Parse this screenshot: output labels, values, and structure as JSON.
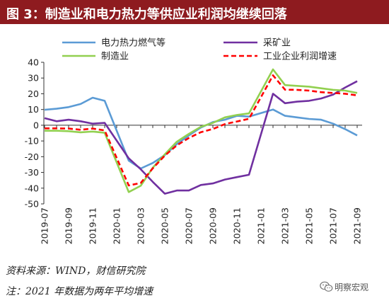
{
  "chart_data": {
    "type": "line",
    "title": "图 3：制造业和电力热力等供应业利润均继续回落",
    "xlabel": "",
    "ylabel": "",
    "ylim": [
      -50,
      40
    ],
    "yticks": [
      40,
      30,
      20,
      10,
      0,
      -10,
      -20,
      -30,
      -40,
      -50
    ],
    "grid": false,
    "legend": "top",
    "categories": [
      "2019-07",
      "2019-08",
      "2019-09",
      "2019-10",
      "2019-11",
      "2019-12",
      "2020-01",
      "2020-02",
      "2020-03",
      "2020-04",
      "2020-05",
      "2020-06",
      "2020-07",
      "2020-08",
      "2020-09",
      "2020-10",
      "2020-11",
      "2020-12",
      "2021-01",
      "2021-02",
      "2021-03",
      "2021-04",
      "2021-05",
      "2021-06",
      "2021-07",
      "2021-08",
      "2021-09"
    ],
    "series": [
      {
        "name": "电力热力燃气等",
        "color": "#5B9BD5",
        "line_style": "solid",
        "values": [
          9.8,
          10.5,
          11.5,
          13.5,
          17.5,
          15.5,
          null,
          -22.5,
          -27.5,
          -24,
          -19,
          -12,
          -6.5,
          -1.5,
          2,
          3.5,
          6,
          5.5,
          null,
          10,
          6,
          5,
          4,
          3.5,
          1,
          -2.5,
          -6.5
        ]
      },
      {
        "name": "采矿业",
        "color": "#7030A0",
        "line_style": "solid",
        "values": [
          4.5,
          2.5,
          3.5,
          2.5,
          1,
          1.5,
          null,
          -21,
          -28,
          -36,
          -43.5,
          -41.5,
          -41.5,
          -38,
          -37,
          -34.5,
          -33,
          -31.5,
          null,
          20,
          14,
          15,
          15.5,
          17,
          19.5,
          24,
          28
        ]
      },
      {
        "name": "制造业",
        "color": "#92D050",
        "line_style": "solid",
        "values": [
          -3.5,
          -3.5,
          -3.8,
          -4.5,
          -4,
          -4.8,
          null,
          -42.5,
          -38.5,
          -27,
          -18.5,
          -10.5,
          -5.5,
          -1,
          1.5,
          5,
          6.5,
          7.5,
          null,
          35.5,
          25.5,
          25,
          24.5,
          23.5,
          22.5,
          22,
          20.5
        ]
      },
      {
        "name": "工业企业利润增速",
        "color": "#FF0000",
        "line_style": "dashed",
        "values": [
          -2,
          -2,
          -2.1,
          -2.9,
          -2.1,
          -3.3,
          null,
          -38.3,
          -36.7,
          -27.4,
          -19.3,
          -12.8,
          -8.1,
          -4.4,
          -2.4,
          0.7,
          2.4,
          4.1,
          null,
          31.7,
          22.6,
          22.5,
          22,
          21,
          20.5,
          20,
          19
        ]
      }
    ]
  },
  "footer": {
    "source": "资料来源：WIND，财信研究院",
    "note": "注：2021 年数据为两年平均增速"
  },
  "watermark": {
    "text": "明察宏观",
    "icon": "wechat-icon"
  }
}
